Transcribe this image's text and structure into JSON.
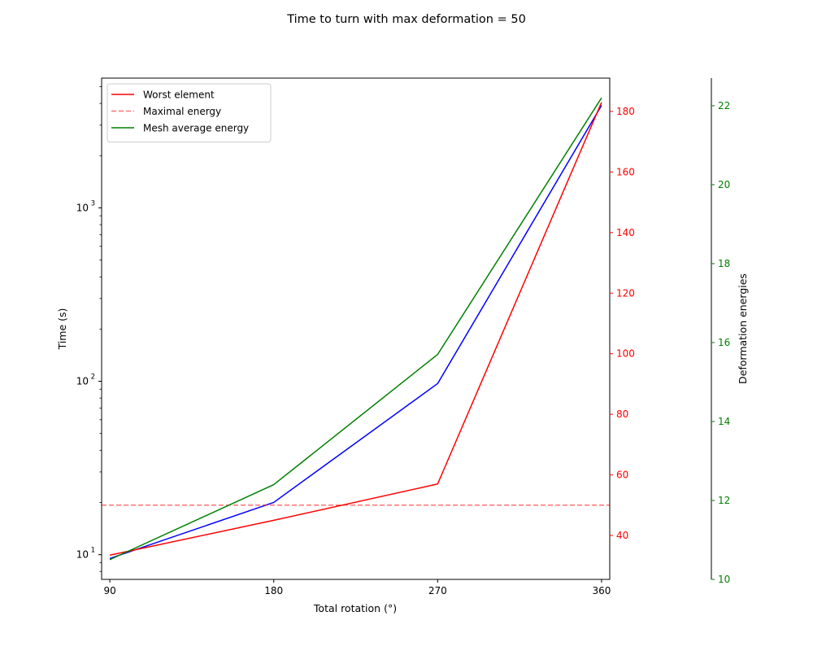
{
  "chart_data": {
    "type": "line",
    "title": "Time to turn with max deformation = 50",
    "xlabel": "Total rotation (°)",
    "x": [
      90,
      180,
      270,
      360
    ],
    "x_ticks": [
      "90",
      "180",
      "270",
      "360"
    ],
    "xlim": [
      85.5,
      364.5
    ],
    "axes": {
      "left": {
        "label": "Time (s)",
        "scale": "log",
        "ylim": [
          7.2,
          5600
        ],
        "major_ticks": [
          10,
          100,
          1000
        ],
        "major_tick_labels": [
          {
            "base": "10",
            "exp": "1"
          },
          {
            "base": "10",
            "exp": "2"
          },
          {
            "base": "10",
            "exp": "3"
          }
        ],
        "color": "#000000"
      },
      "right1": {
        "label": "",
        "scale": "linear",
        "ylim": [
          25.5,
          191
        ],
        "ticks": [
          40,
          60,
          80,
          100,
          120,
          140,
          160,
          180
        ],
        "color": "#ff0000"
      },
      "right2": {
        "label": "Deformation energies",
        "scale": "linear",
        "ylim": [
          10,
          22.7
        ],
        "ticks": [
          10,
          12,
          14,
          16,
          18,
          20,
          22
        ],
        "color": "#008000"
      }
    },
    "series": [
      {
        "axis": "left",
        "color": "#0000ff",
        "dash": "",
        "values": [
          9.5,
          20,
          97,
          3900
        ]
      },
      {
        "axis": "right1",
        "name": "Worst element",
        "color": "#ff0000",
        "dash": "",
        "values": [
          33.5,
          45,
          57,
          183
        ]
      },
      {
        "axis": "right1",
        "name": "Maximal energy",
        "color": "#ff0000",
        "opacity": 0.55,
        "dash": "6,3",
        "hline": 50
      },
      {
        "axis": "right2",
        "name": "Mesh average energy",
        "color": "#008000",
        "dash": "",
        "values": [
          10.5,
          12.4,
          15.7,
          22.2
        ]
      }
    ],
    "legend": {
      "position": "top-left",
      "entries": [
        "Worst element",
        "Maximal energy",
        "Mesh average energy"
      ]
    }
  }
}
